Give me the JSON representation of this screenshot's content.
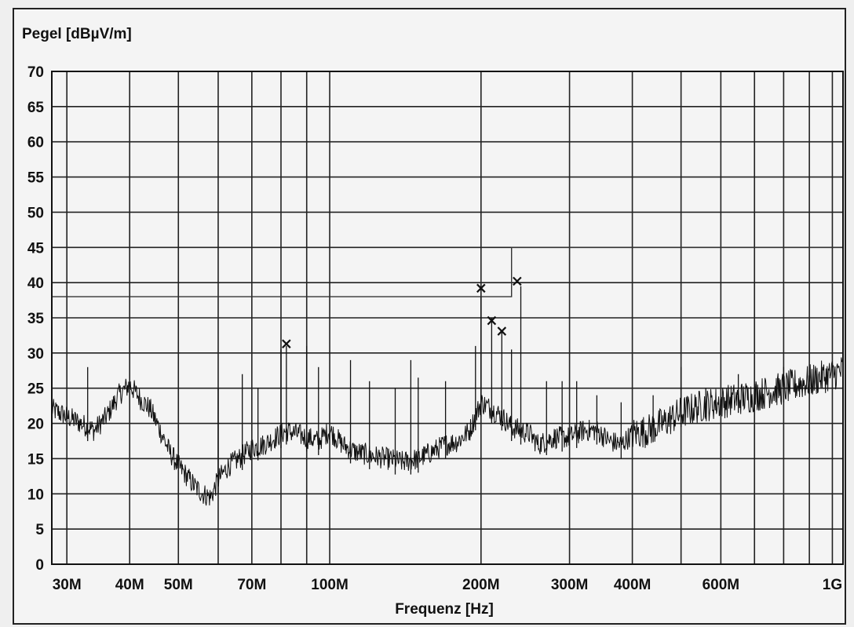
{
  "chart_data": {
    "type": "line",
    "title": "",
    "ylabel": "Pegel [dBµV/m]",
    "xlabel": "Frequenz [Hz]",
    "x_scale": "log",
    "xlim": [
      28000000,
      1050000000
    ],
    "ylim": [
      0,
      70
    ],
    "grid": true,
    "y_ticks": [
      "0",
      "5",
      "10",
      "15",
      "20",
      "25",
      "30",
      "35",
      "40",
      "45",
      "50",
      "55",
      "60",
      "65",
      "70"
    ],
    "x_ticks": [
      {
        "value": 30000000,
        "label": "30M"
      },
      {
        "value": 40000000,
        "label": "40M"
      },
      {
        "value": 50000000,
        "label": "50M"
      },
      {
        "value": 70000000,
        "label": "70M"
      },
      {
        "value": 100000000,
        "label": "100M"
      },
      {
        "value": 200000000,
        "label": "200M"
      },
      {
        "value": 300000000,
        "label": "300M"
      },
      {
        "value": 400000000,
        "label": "400M"
      },
      {
        "value": 600000000,
        "label": "600M"
      },
      {
        "value": 1000000000,
        "label": "1G"
      }
    ],
    "x_grid": [
      30000000,
      40000000,
      50000000,
      60000000,
      70000000,
      80000000,
      90000000,
      100000000,
      200000000,
      300000000,
      400000000,
      500000000,
      600000000,
      700000000,
      800000000,
      900000000,
      1000000000
    ],
    "limit_line": {
      "points": [
        [
          28000000,
          38
        ],
        [
          230000000,
          38
        ],
        [
          230000000,
          45
        ],
        [
          1050000000,
          45
        ]
      ]
    },
    "series": [
      {
        "x": [
          28000000,
          30000000,
          32000000,
          34000000,
          36000000,
          38000000,
          40000000,
          42000000,
          44000000,
          46000000,
          48000000,
          50000000,
          52000000,
          54000000,
          56000000,
          58000000,
          60000000,
          63000000,
          66000000,
          70000000,
          74000000,
          78000000,
          82000000,
          86000000,
          90000000,
          95000000,
          100000000,
          106000000,
          112000000,
          120000000,
          130000000,
          140000000,
          150000000,
          160000000,
          170000000,
          180000000,
          190000000,
          200000000,
          210000000,
          220000000,
          230000000,
          240000000,
          250000000,
          260000000,
          270000000,
          280000000,
          300000000,
          320000000,
          340000000,
          360000000,
          380000000,
          400000000,
          430000000,
          460000000,
          500000000,
          550000000,
          600000000,
          650000000,
          700000000,
          800000000,
          900000000,
          1000000000,
          1050000000
        ],
        "y": [
          22,
          21,
          20,
          19,
          21,
          24,
          25.5,
          23.5,
          22,
          19,
          16,
          14,
          12.5,
          11,
          10,
          9.5,
          12,
          14,
          15,
          16.5,
          17,
          18,
          19,
          18.5,
          18,
          17.5,
          19,
          17,
          16,
          15.5,
          15,
          14.5,
          15,
          16,
          17,
          17.5,
          19,
          23,
          22,
          21,
          19.5,
          19,
          18.5,
          17,
          17.5,
          18,
          18,
          19,
          19,
          17.5,
          17,
          18.5,
          19,
          20,
          21.5,
          22.5,
          23,
          23.5,
          24,
          25,
          26,
          27,
          27.5
        ]
      }
    ],
    "peaks": [
      [
        33000000,
        28
      ],
      [
        60000000,
        25
      ],
      [
        67000000,
        27
      ],
      [
        72000000,
        25
      ],
      [
        80000000,
        30.5
      ],
      [
        82000000,
        31
      ],
      [
        90000000,
        31
      ],
      [
        95000000,
        28
      ],
      [
        110000000,
        29
      ],
      [
        120000000,
        26
      ],
      [
        135000000,
        25
      ],
      [
        145000000,
        29
      ],
      [
        150000000,
        26.5
      ],
      [
        170000000,
        26
      ],
      [
        195000000,
        31
      ],
      [
        200000000,
        38
      ],
      [
        210000000,
        35
      ],
      [
        220000000,
        33
      ],
      [
        230000000,
        30.5
      ],
      [
        240000000,
        39.5
      ],
      [
        270000000,
        26
      ],
      [
        290000000,
        26
      ],
      [
        310000000,
        26
      ],
      [
        340000000,
        24
      ],
      [
        380000000,
        23
      ],
      [
        440000000,
        24
      ],
      [
        500000000,
        28
      ],
      [
        560000000,
        25
      ],
      [
        650000000,
        27
      ],
      [
        800000000,
        28
      ]
    ],
    "markers": [
      [
        82000000,
        31.3
      ],
      [
        200000000,
        39.2
      ],
      [
        210000000,
        34.6
      ],
      [
        220000000,
        33.1
      ],
      [
        236000000,
        40.2
      ]
    ]
  }
}
